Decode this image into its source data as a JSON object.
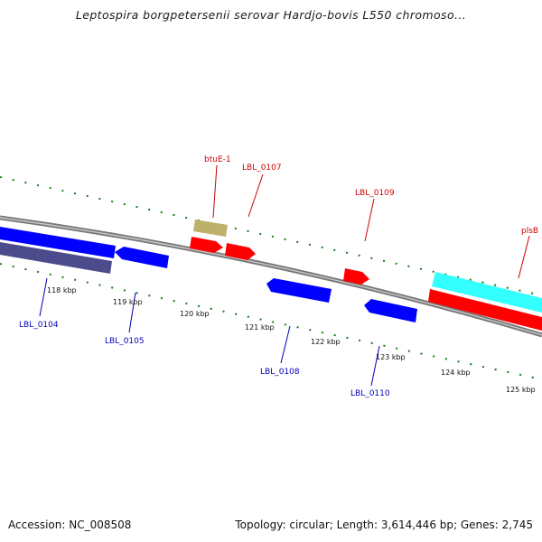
{
  "title": "Leptospira borgpetersenii serovar Hardjo-bovis L550 chromoso...",
  "footer": {
    "accession": "Accession: NC_008508",
    "topology": "Topology: circular; Length: 3,614,446 bp; Genes: 2,745"
  },
  "colors": {
    "forward_gene": "#ff0000",
    "reverse_gene": "#0000ff",
    "forward_label": "#cc0000",
    "reverse_label": "#0000bb",
    "cds_strand_forward": "#33ffff",
    "cds_strand_reverse": "#4c4c8c",
    "rna_gene": "#bdb06a",
    "backbone": "#888888",
    "ticks": "#1a7a1a"
  },
  "ticks": [
    "118 kbp",
    "119 kbp",
    "120 kbp",
    "121 kbp",
    "122 kbp",
    "123 kbp",
    "124 kbp",
    "125 kbp"
  ],
  "genes": [
    {
      "name": "LBL_0104",
      "strand": "reverse"
    },
    {
      "name": "LBL_0105",
      "strand": "reverse"
    },
    {
      "name": "btuE-1",
      "strand": "forward"
    },
    {
      "name": "LBL_0107",
      "strand": "forward"
    },
    {
      "name": "LBL_0108",
      "strand": "reverse"
    },
    {
      "name": "LBL_0109",
      "strand": "forward"
    },
    {
      "name": "LBL_0110",
      "strand": "reverse"
    },
    {
      "name": "plsB",
      "strand": "forward"
    }
  ]
}
